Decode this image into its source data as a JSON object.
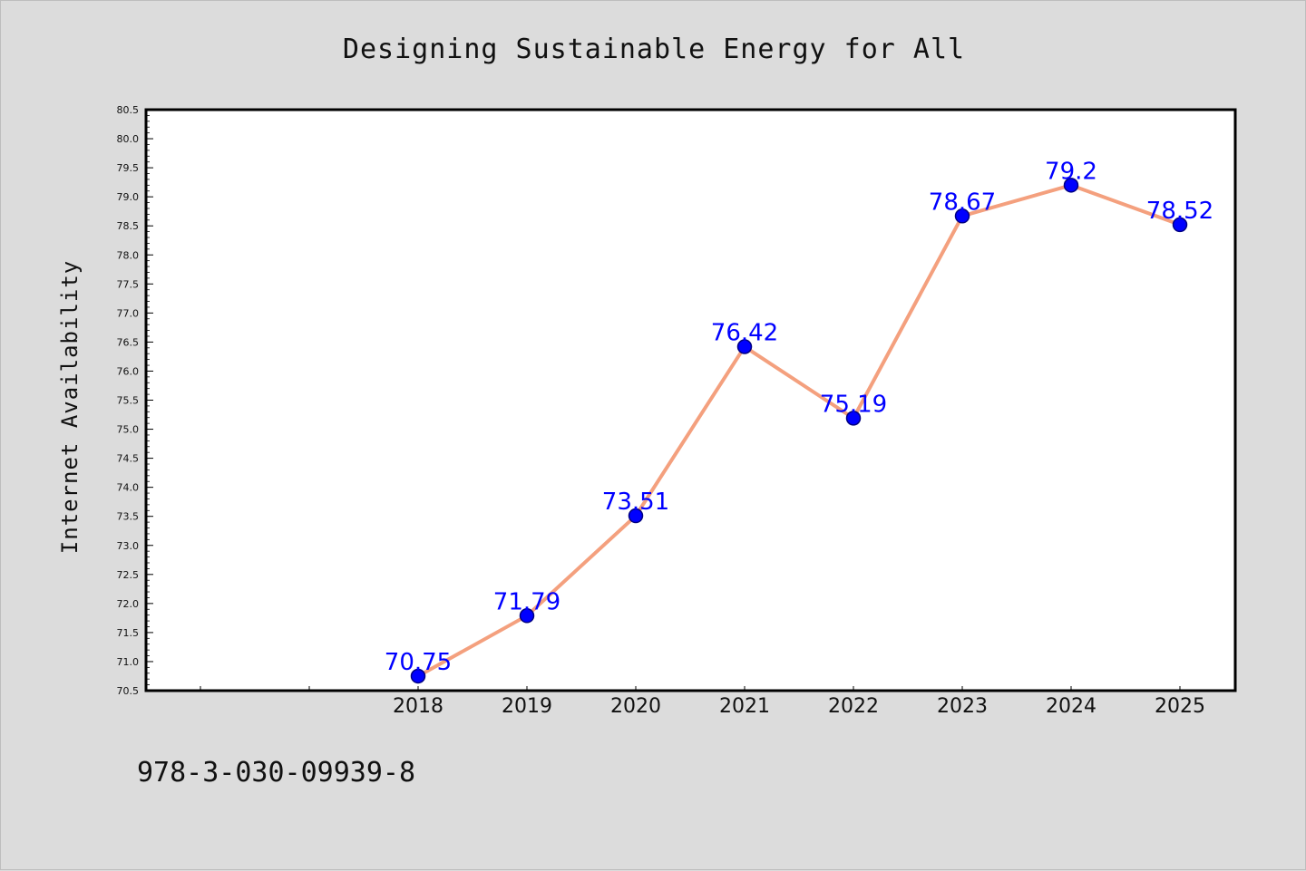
{
  "chart_data": {
    "type": "line",
    "title": "Designing Sustainable Energy for All",
    "xlabel": "",
    "ylabel": "Internet Availability",
    "categories": [
      "2018",
      "2019",
      "2020",
      "2021",
      "2022",
      "2023",
      "2024",
      "2025"
    ],
    "series": [
      {
        "values": [
          70.75,
          71.79,
          73.51,
          76.42,
          75.19,
          78.67,
          79.2,
          78.52
        ],
        "data_labels": [
          "70.75",
          "71.79",
          "73.51",
          "76.42",
          "75.19",
          "78.67",
          "79.2",
          "78.52"
        ]
      }
    ],
    "ylim": [
      70.5,
      80.5
    ],
    "y_ticks": [
      "70.5",
      "71.0",
      "71.5",
      "72.0",
      "72.5",
      "73.0",
      "73.5",
      "74.0",
      "74.5",
      "75.0",
      "75.5",
      "76.0",
      "76.5",
      "77.0",
      "77.5",
      "78.0",
      "78.5",
      "79.0",
      "79.5",
      "80.0",
      "80.5"
    ],
    "grid": false,
    "legend": "none",
    "colors": {
      "line": "#f4a07e",
      "marker_fill": "#0000ff",
      "marker_edge": "#000080",
      "data_label": "#0000ff",
      "background": "#dcdcdc",
      "plot_background": "#ffffff"
    }
  },
  "footer": {
    "isbn": "978-3-030-09939-8"
  }
}
